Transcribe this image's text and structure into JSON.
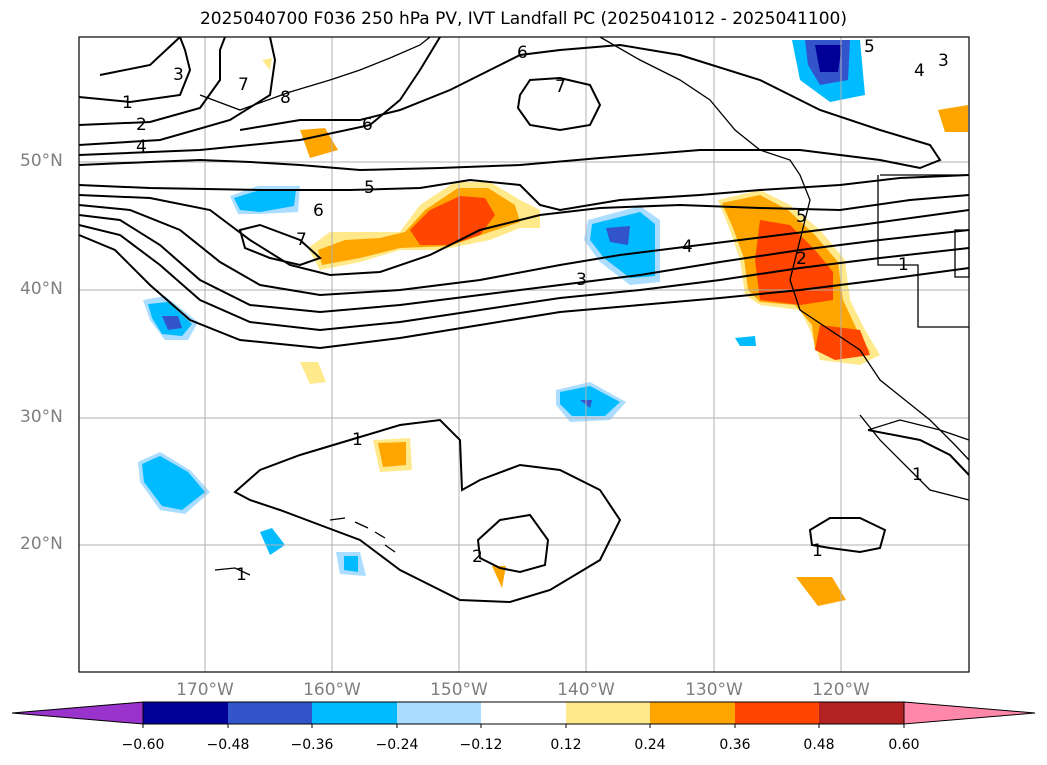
{
  "title": "2025040700 F036 250 hPa PV, IVT Landfall PC (2025041012 - 2025041100)",
  "lat_labels": [
    "50°N",
    "40°N",
    "30°N",
    "20°N"
  ],
  "lon_labels": [
    "170°W",
    "160°W",
    "150°W",
    "140°W",
    "130°W",
    "120°W"
  ],
  "contour_labels": [
    {
      "text": "6",
      "id": "c6a"
    },
    {
      "text": "7",
      "id": "c7a"
    },
    {
      "text": "3",
      "id": "c3a"
    },
    {
      "text": "7",
      "id": "c7b"
    },
    {
      "text": "8",
      "id": "c8a"
    },
    {
      "text": "1",
      "id": "c1a"
    },
    {
      "text": "2",
      "id": "c2a"
    },
    {
      "text": "4",
      "id": "c4a"
    },
    {
      "text": "6",
      "id": "c6b"
    },
    {
      "text": "5",
      "id": "c5a"
    },
    {
      "text": "6",
      "id": "c6c"
    },
    {
      "text": "7",
      "id": "c7c"
    },
    {
      "text": "4",
      "id": "c4b"
    },
    {
      "text": "3",
      "id": "c3b"
    },
    {
      "text": "5",
      "id": "c5b"
    },
    {
      "text": "2",
      "id": "c2b"
    },
    {
      "text": "1",
      "id": "c1b"
    },
    {
      "text": "5",
      "id": "c5c"
    },
    {
      "text": "4",
      "id": "c4c"
    },
    {
      "text": "3",
      "id": "c3c"
    },
    {
      "text": "1",
      "id": "c1c"
    },
    {
      "text": "2",
      "id": "c2c"
    },
    {
      "text": "1",
      "id": "c1d"
    },
    {
      "text": "1",
      "id": "c1e"
    },
    {
      "text": "1",
      "id": "c1f"
    }
  ],
  "colorbar": {
    "ticks": [
      "−0.60",
      "−0.48",
      "−0.36",
      "−0.24",
      "−0.12",
      "0.12",
      "0.24",
      "0.36",
      "0.48",
      "0.60"
    ],
    "colors": [
      "#9933cc",
      "#000099",
      "#3355cc",
      "#00bbff",
      "#aaddff",
      "#ffffff",
      "#ffe98a",
      "#ffa500",
      "#ff4500",
      "#b22222",
      "#ff88aa"
    ]
  }
}
